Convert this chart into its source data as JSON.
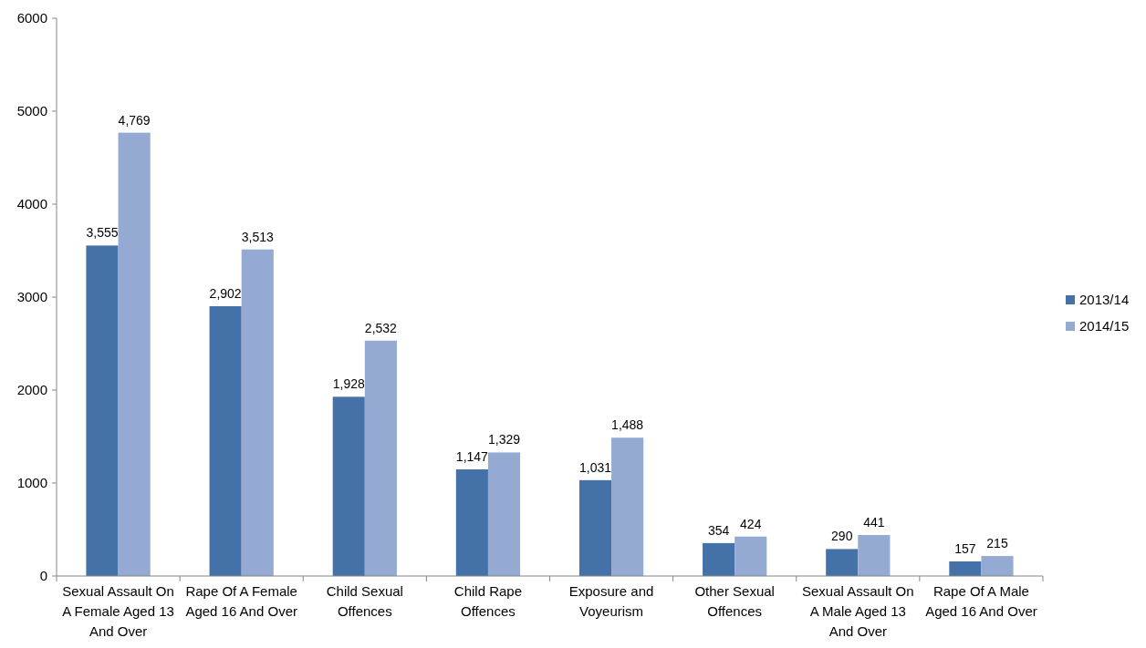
{
  "chart_data": {
    "type": "bar",
    "categories": [
      "Sexual Assault On A Female Aged 13 And Over",
      "Rape Of A Female Aged 16 And Over",
      "Child Sexual Offences",
      "Child Rape Offences",
      "Exposure and Voyeurism",
      "Other Sexual Offences",
      "Sexual Assault On A Male Aged 13 And Over",
      "Rape Of A Male Aged 16 And Over"
    ],
    "series": [
      {
        "name": "2013/14",
        "color": "#4472a8",
        "values": [
          3555,
          2902,
          1928,
          1147,
          1031,
          354,
          290,
          157
        ],
        "value_labels": [
          "3,555",
          "2,902",
          "1,928",
          "1,147",
          "1,031",
          "354",
          "290",
          "157"
        ]
      },
      {
        "name": "2014/15",
        "color": "#95aad2",
        "values": [
          4769,
          3513,
          2532,
          1329,
          1488,
          424,
          441,
          215
        ],
        "value_labels": [
          "4,769",
          "3,513",
          "2,532",
          "1,329",
          "1,488",
          "424",
          "441",
          "215"
        ]
      }
    ],
    "ylim": [
      0,
      6000
    ],
    "yticks": [
      0,
      1000,
      2000,
      3000,
      4000,
      5000,
      6000
    ],
    "grid": false,
    "legend": "right"
  }
}
